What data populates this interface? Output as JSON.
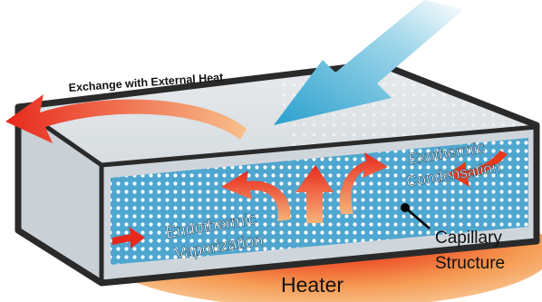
{
  "labels": {
    "external_heat": "Exchange with External Heat",
    "endothermic_line1": "Endothermic",
    "endothermic_line2": "Vaporization",
    "exothermic_line1": "Exothermic",
    "exothermic_line2": "Condensation",
    "capillary_line1": "Capillary",
    "capillary_line2": "Structure",
    "heater": "Heater"
  },
  "colors": {
    "heat_red": "#e8291c",
    "heat_orange": "#f6a25a",
    "heat_peach": "#f7c08e",
    "inflow_blue": "#2fa3cf",
    "wick_blue": "#4fa6cf",
    "frame_dark": "#2a2a2a",
    "casing_gray": "#c8ced3"
  },
  "icons": {
    "external_arrow": "curved-arrow-left",
    "inflow_arrow": "arrow-down-left",
    "vapor_arrows": "arrow-up",
    "pointer": "leader-line-dot"
  }
}
